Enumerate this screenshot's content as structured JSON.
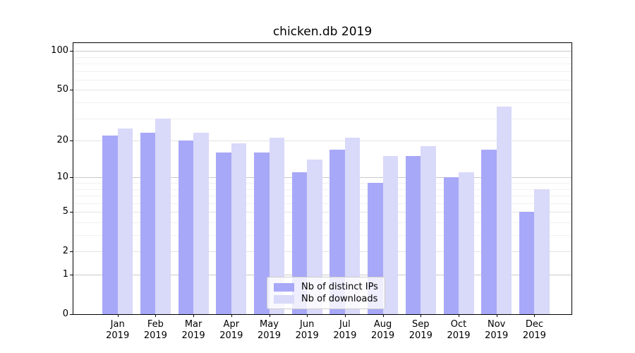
{
  "chart_data": {
    "type": "bar",
    "title": "chicken.db 2019",
    "categories": [
      "Jan\n2019",
      "Feb\n2019",
      "Mar\n2019",
      "Apr\n2019",
      "May\n2019",
      "Jun\n2019",
      "Jul\n2019",
      "Aug\n2019",
      "Sep\n2019",
      "Oct\n2019",
      "Nov\n2019",
      "Dec\n2019"
    ],
    "series": [
      {
        "name": "Nb of distinct IPs",
        "color": "#a8a8f8",
        "values": [
          22,
          23,
          20,
          16,
          16,
          11,
          17,
          9,
          15,
          10,
          17,
          5
        ]
      },
      {
        "name": "Nb of downloads",
        "color": "#d9d9f9",
        "values": [
          25,
          30,
          23,
          19,
          21,
          14,
          21,
          15,
          18,
          11,
          37,
          8
        ]
      }
    ],
    "xlabel": "",
    "ylabel": "",
    "y_scale": "log10(v+1)",
    "ylim": [
      0,
      115
    ],
    "y_tick_labels": [
      "100",
      "50",
      "20",
      "10",
      "5",
      "2",
      "1",
      "0"
    ],
    "y_ticks": [
      100,
      50,
      20,
      10,
      5,
      2,
      1,
      0
    ],
    "gridlines_major": [
      100,
      10,
      1
    ],
    "gridlines_mid": [
      50,
      20,
      5,
      2
    ],
    "gridlines_minor": [
      90,
      80,
      70,
      60,
      40,
      30,
      9,
      8,
      7,
      6,
      4,
      3
    ],
    "grid": true,
    "legend_position": "lower center"
  }
}
